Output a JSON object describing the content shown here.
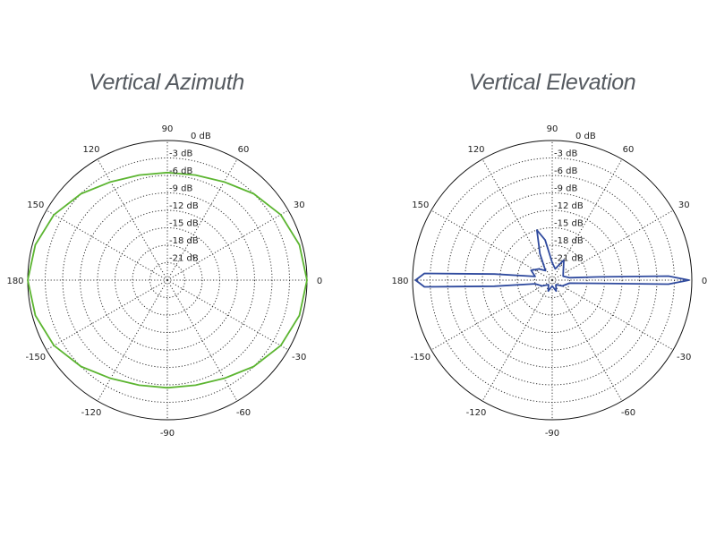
{
  "chart_data": [
    {
      "type": "polar",
      "title": "Vertical Azimuth",
      "angle_ticks": [
        "0",
        "30",
        "60",
        "90",
        "120",
        "150",
        "180",
        "-150",
        "-120",
        "-90",
        "-60",
        "-30"
      ],
      "radial_ticks": [
        "0 dB",
        "-3 dB",
        "-6 dB",
        "-9 dB",
        "-12 dB",
        "-15 dB",
        "-18 dB",
        "-21 dB"
      ],
      "rlim": [
        -24,
        0
      ],
      "grid": true,
      "series": [
        {
          "color": "#5cb531",
          "points": [
            {
              "angle": 0,
              "value": 0
            },
            {
              "angle": 15,
              "value": -0.5
            },
            {
              "angle": 30,
              "value": -1.5
            },
            {
              "angle": 45,
              "value": -3.0
            },
            {
              "angle": 60,
              "value": -4.5
            },
            {
              "angle": 75,
              "value": -5.3
            },
            {
              "angle": 90,
              "value": -5.5
            },
            {
              "angle": 105,
              "value": -5.3
            },
            {
              "angle": 120,
              "value": -4.5
            },
            {
              "angle": 135,
              "value": -3.0
            },
            {
              "angle": 150,
              "value": -1.5
            },
            {
              "angle": 165,
              "value": -0.5
            },
            {
              "angle": 180,
              "value": 0
            },
            {
              "angle": -165,
              "value": -0.5
            },
            {
              "angle": -150,
              "value": -1.5
            },
            {
              "angle": -135,
              "value": -3.0
            },
            {
              "angle": -120,
              "value": -4.5
            },
            {
              "angle": -105,
              "value": -5.3
            },
            {
              "angle": -90,
              "value": -5.5
            },
            {
              "angle": -75,
              "value": -5.3
            },
            {
              "angle": -60,
              "value": -4.5
            },
            {
              "angle": -45,
              "value": -3.0
            },
            {
              "angle": -30,
              "value": -1.5
            },
            {
              "angle": -15,
              "value": -0.5
            }
          ]
        }
      ]
    },
    {
      "type": "polar",
      "title": "Vertical Elevation",
      "angle_ticks": [
        "0",
        "30",
        "60",
        "90",
        "120",
        "150",
        "180",
        "-150",
        "-120",
        "-90",
        "-60",
        "-30"
      ],
      "radial_ticks": [
        "0 dB",
        "-3 dB",
        "-6 dB",
        "-9 dB",
        "-12 dB",
        "-15 dB",
        "-18 dB",
        "-21 dB"
      ],
      "rlim": [
        -24,
        0
      ],
      "grid": true,
      "series": [
        {
          "color": "#2f4a9e",
          "points": [
            {
              "angle": 0,
              "value": -0.5
            },
            {
              "angle": 2,
              "value": -4
            },
            {
              "angle": 4,
              "value": -16
            },
            {
              "angle": 8,
              "value": -21
            },
            {
              "angle": 20,
              "value": -22
            },
            {
              "angle": 40,
              "value": -21.5
            },
            {
              "angle": 60,
              "value": -20
            },
            {
              "angle": 75,
              "value": -22
            },
            {
              "angle": 90,
              "value": -21
            },
            {
              "angle": 100,
              "value": -17
            },
            {
              "angle": 107,
              "value": -15
            },
            {
              "angle": 115,
              "value": -19
            },
            {
              "angle": 125,
              "value": -22
            },
            {
              "angle": 140,
              "value": -21
            },
            {
              "angle": 155,
              "value": -20
            },
            {
              "angle": 168,
              "value": -21
            },
            {
              "angle": 174,
              "value": -14
            },
            {
              "angle": 177,
              "value": -2
            },
            {
              "angle": 180,
              "value": -0.5
            },
            {
              "angle": -177,
              "value": -2
            },
            {
              "angle": -174,
              "value": -14
            },
            {
              "angle": -168,
              "value": -21
            },
            {
              "angle": -150,
              "value": -22
            },
            {
              "angle": -130,
              "value": -23
            },
            {
              "angle": -110,
              "value": -22
            },
            {
              "angle": -90,
              "value": -23
            },
            {
              "angle": -70,
              "value": -22
            },
            {
              "angle": -50,
              "value": -23
            },
            {
              "angle": -30,
              "value": -22
            },
            {
              "angle": -10,
              "value": -21
            },
            {
              "angle": -4,
              "value": -16
            },
            {
              "angle": -2,
              "value": -4
            }
          ]
        }
      ]
    }
  ]
}
